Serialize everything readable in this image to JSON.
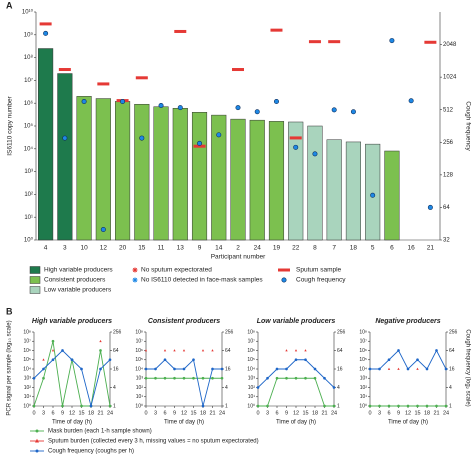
{
  "figure_labels": [
    "A",
    "B"
  ],
  "panel_b_ylabel": "PCR signal per sample (log₁₀ scale)",
  "panel_b_y2label": "Cough frequency (log₂ scale)",
  "chart_data": [
    {
      "type": "bar",
      "ylabel": "IS6110 copy number",
      "y2label": "Cough frequency",
      "xlabel": "Participant number",
      "categories": [
        "4",
        "3",
        "10",
        "12",
        "20",
        "15",
        "11",
        "13",
        "9",
        "14",
        "2",
        "24",
        "19",
        "22",
        "8",
        "7",
        "18",
        "5",
        "6",
        "16",
        "21"
      ],
      "values": [
        250000000,
        20000000,
        2000000,
        1600000,
        1200000,
        900000,
        700000,
        600000,
        400000,
        300000,
        200000,
        180000,
        160000,
        150000,
        100000,
        25000,
        20000,
        16000,
        8000,
        null,
        null
      ],
      "bar_group": [
        0,
        0,
        1,
        1,
        1,
        1,
        1,
        1,
        1,
        1,
        1,
        1,
        1,
        2,
        2,
        2,
        2,
        2,
        1,
        1,
        1
      ],
      "groups": [
        {
          "name": "High variable producers",
          "color": "#1e7a4c"
        },
        {
          "name": "Consistent producers",
          "color": "#7cc04f"
        },
        {
          "name": "Low variable producers",
          "color": "#a9d4bd"
        }
      ],
      "series": [
        {
          "name": "Sputum sample",
          "color": "#e53935",
          "marker": "dash",
          "values": [
            3000000000,
            30000000,
            null,
            7000000,
            1300000,
            13000000,
            null,
            1400000000,
            13000,
            null,
            30000000,
            null,
            1600000000,
            30000,
            500000000,
            500000000,
            null,
            null,
            null,
            null,
            470000000
          ]
        },
        {
          "name": "Cough frequency",
          "color": "#1e88e5",
          "marker": "dot",
          "axis": "y2",
          "values": [
            2600,
            280,
            610,
            40,
            610,
            280,
            560,
            535,
            250,
            300,
            535,
            490,
            610,
            230,
            200,
            510,
            490,
            83,
            2230,
            620,
            64
          ]
        }
      ],
      "legend_notes": [
        {
          "name": "No sputum expectorated",
          "color": "#e53935"
        },
        {
          "name": "No IS6110 detected in face-mask samples",
          "color": "#1e88e5"
        }
      ],
      "ylog": true,
      "ylim": [
        1,
        10000000000
      ],
      "yticks": [
        {
          "value": 1,
          "label": "10⁰"
        },
        {
          "value": 10,
          "label": "10¹"
        },
        {
          "value": 100,
          "label": "10²"
        },
        {
          "value": 1000,
          "label": "10³"
        },
        {
          "value": 10000,
          "label": "10⁴"
        },
        {
          "value": 100000,
          "label": "10⁵"
        },
        {
          "value": 1000000,
          "label": "10⁶"
        },
        {
          "value": 10000000,
          "label": "10⁷"
        },
        {
          "value": 100000000,
          "label": "10⁸"
        },
        {
          "value": 1000000000,
          "label": "10⁹"
        },
        {
          "value": 10000000000,
          "label": "10¹⁰"
        }
      ],
      "y2log": true,
      "y2lim": [
        32,
        4096
      ],
      "y2ticks": [
        32,
        64,
        128,
        256,
        512,
        1024,
        2048
      ]
    },
    {
      "type": "line",
      "title": "High variable producers",
      "xlabel": "Time of day (h)",
      "x": [
        0,
        3,
        6,
        9,
        12,
        15,
        18,
        21,
        24
      ],
      "xlim": [
        0,
        24
      ],
      "xticks": [
        0,
        3,
        6,
        9,
        12,
        15,
        18,
        21,
        24
      ],
      "series": [
        {
          "name": "Mask burden (each 1-h sample shown)",
          "color": "#4caf50",
          "marker": "dot",
          "values": [
            1,
            1000,
            10000000,
            1,
            100000,
            1,
            1,
            1000000,
            1
          ]
        },
        {
          "name": "Sputum burden (collected every 3 h, missing values = no sputum expectorated)",
          "color": "#e53935",
          "marker": "triangle",
          "values": [
            null,
            100000,
            1000000,
            null,
            null,
            10000,
            null,
            10000000,
            null
          ]
        },
        {
          "name": "Cough frequency (coughs per h)",
          "color": "#1e66c8",
          "marker": "dot",
          "axis": "y2",
          "values": [
            8,
            16,
            32,
            64,
            32,
            16,
            1,
            16,
            32
          ]
        }
      ],
      "ylog": true,
      "ylim": [
        1,
        100000000
      ],
      "yticks": [
        {
          "value": 1,
          "label": "10⁰"
        },
        {
          "value": 10,
          "label": "10¹"
        },
        {
          "value": 100,
          "label": "10²"
        },
        {
          "value": 1000,
          "label": "10³"
        },
        {
          "value": 10000,
          "label": "10⁴"
        },
        {
          "value": 100000,
          "label": "10⁵"
        },
        {
          "value": 1000000,
          "label": "10⁶"
        },
        {
          "value": 10000000,
          "label": "10⁷"
        },
        {
          "value": 100000000,
          "label": "10⁸"
        }
      ],
      "y2log": true,
      "y2lim": [
        1,
        256
      ],
      "y2ticks": [
        1,
        4,
        16,
        64,
        256
      ]
    },
    {
      "type": "line",
      "title": "Consistent producers",
      "xlabel": "Time of day (h)",
      "x": [
        0,
        3,
        6,
        9,
        12,
        15,
        18,
        21,
        24
      ],
      "xlim": [
        0,
        24
      ],
      "xticks": [
        0,
        3,
        6,
        9,
        12,
        15,
        18,
        21,
        24
      ],
      "series": [
        {
          "color": "#4caf50",
          "marker": "dot",
          "values": [
            1000,
            1000,
            1000,
            1000,
            1000,
            1000,
            1000,
            1000,
            1000
          ]
        },
        {
          "color": "#e53935",
          "marker": "triangle",
          "values": [
            1000000,
            null,
            1000000,
            1000000,
            1000000,
            null,
            1000000,
            1000000,
            null
          ]
        },
        {
          "color": "#1e66c8",
          "marker": "dot",
          "axis": "y2",
          "values": [
            16,
            16,
            32,
            16,
            16,
            32,
            1,
            16,
            16
          ]
        }
      ],
      "ylog": true,
      "ylim": [
        1,
        100000000
      ],
      "yticks": [
        {
          "value": 1,
          "label": "10⁰"
        },
        {
          "value": 10,
          "label": "10¹"
        },
        {
          "value": 100,
          "label": "10²"
        },
        {
          "value": 1000,
          "label": "10³"
        },
        {
          "value": 10000,
          "label": "10⁴"
        },
        {
          "value": 100000,
          "label": "10⁵"
        },
        {
          "value": 1000000,
          "label": "10⁶"
        },
        {
          "value": 10000000,
          "label": "10⁷"
        },
        {
          "value": 100000000,
          "label": "10⁸"
        }
      ],
      "y2log": true,
      "y2lim": [
        1,
        256
      ],
      "y2ticks": [
        1,
        4,
        16,
        64,
        256
      ]
    },
    {
      "type": "line",
      "title": "Low variable producers",
      "xlabel": "Time of day (h)",
      "x": [
        0,
        3,
        6,
        9,
        12,
        15,
        18,
        21,
        24
      ],
      "xlim": [
        0,
        24
      ],
      "xticks": [
        0,
        3,
        6,
        9,
        12,
        15,
        18,
        21,
        24
      ],
      "series": [
        {
          "color": "#4caf50",
          "marker": "dot",
          "values": [
            1,
            1,
            1000,
            1000,
            1000,
            1000,
            1000,
            1,
            1
          ]
        },
        {
          "color": "#e53935",
          "marker": "triangle",
          "values": [
            null,
            null,
            null,
            1000000,
            1000000,
            1000000,
            null,
            null,
            null
          ]
        },
        {
          "color": "#1e66c8",
          "marker": "dot",
          "axis": "y2",
          "values": [
            4,
            8,
            16,
            16,
            32,
            32,
            16,
            8,
            4
          ]
        }
      ],
      "ylog": true,
      "ylim": [
        1,
        100000000
      ],
      "yticks": [
        {
          "value": 1,
          "label": "10⁰"
        },
        {
          "value": 10,
          "label": "10¹"
        },
        {
          "value": 100,
          "label": "10²"
        },
        {
          "value": 1000,
          "label": "10³"
        },
        {
          "value": 10000,
          "label": "10⁴"
        },
        {
          "value": 100000,
          "label": "10⁵"
        },
        {
          "value": 1000000,
          "label": "10⁶"
        },
        {
          "value": 10000000,
          "label": "10⁷"
        },
        {
          "value": 100000000,
          "label": "10⁸"
        }
      ],
      "y2log": true,
      "y2lim": [
        1,
        256
      ],
      "y2ticks": [
        1,
        4,
        16,
        64,
        256
      ]
    },
    {
      "type": "line",
      "title": "Negative producers",
      "xlabel": "Time of day (h)",
      "x": [
        0,
        3,
        6,
        9,
        12,
        15,
        18,
        21,
        24
      ],
      "xlim": [
        0,
        24
      ],
      "xticks": [
        0,
        3,
        6,
        9,
        12,
        15,
        18,
        21,
        24
      ],
      "series": [
        {
          "color": "#4caf50",
          "marker": "dot",
          "values": [
            1,
            1,
            1,
            1,
            1,
            1,
            1,
            1,
            1
          ]
        },
        {
          "color": "#e53935",
          "marker": "triangle",
          "values": [
            null,
            null,
            10000,
            10000,
            null,
            10000,
            null,
            null,
            null
          ]
        },
        {
          "color": "#1e66c8",
          "marker": "dot",
          "axis": "y2",
          "values": [
            16,
            16,
            32,
            64,
            16,
            32,
            16,
            64,
            16
          ]
        }
      ],
      "ylog": true,
      "ylim": [
        1,
        100000000
      ],
      "yticks": [
        {
          "value": 1,
          "label": "10⁰"
        },
        {
          "value": 10,
          "label": "10¹"
        },
        {
          "value": 100,
          "label": "10²"
        },
        {
          "value": 1000,
          "label": "10³"
        },
        {
          "value": 10000,
          "label": "10⁴"
        },
        {
          "value": 100000,
          "label": "10⁵"
        },
        {
          "value": 1000000,
          "label": "10⁶"
        },
        {
          "value": 10000000,
          "label": "10⁷"
        },
        {
          "value": 100000000,
          "label": "10⁸"
        }
      ],
      "y2log": true,
      "y2lim": [
        1,
        256
      ],
      "y2ticks": [
        1,
        4,
        16,
        64,
        256
      ]
    }
  ]
}
